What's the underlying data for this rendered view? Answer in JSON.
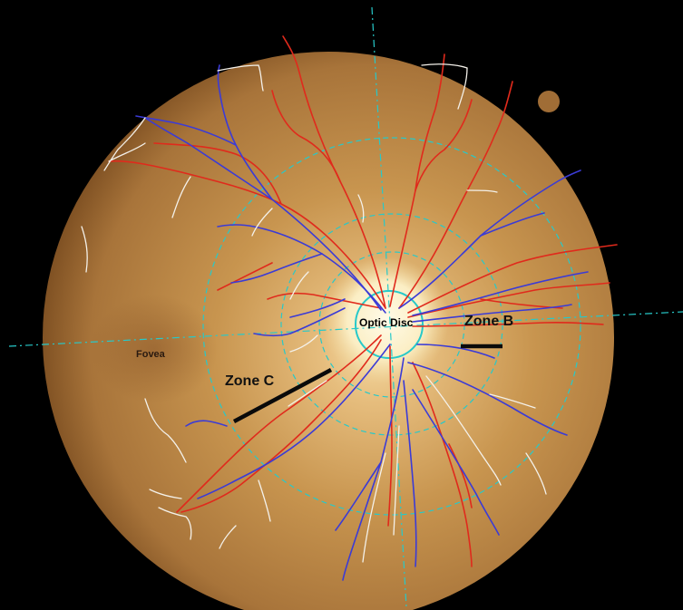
{
  "labels": {
    "optic_disc": "Optic Disc",
    "zone_b": "Zone B",
    "zone_c": "Zone C",
    "fovea": "Fovea"
  },
  "colors": {
    "background": "#000000",
    "retina_center": "#f3d7a0",
    "retina_mid": "#c99a5a",
    "retina_edge": "#7a4f22",
    "artery": "#e02a1c",
    "vein": "#3b3bd6",
    "capillary_trace": "#f4f1ea",
    "zone_circle": "#27c9c9",
    "zone_marker": "#0a0a0a"
  },
  "icons": [
    "fundus-photograph",
    "optic-disc",
    "fovea-spot"
  ]
}
